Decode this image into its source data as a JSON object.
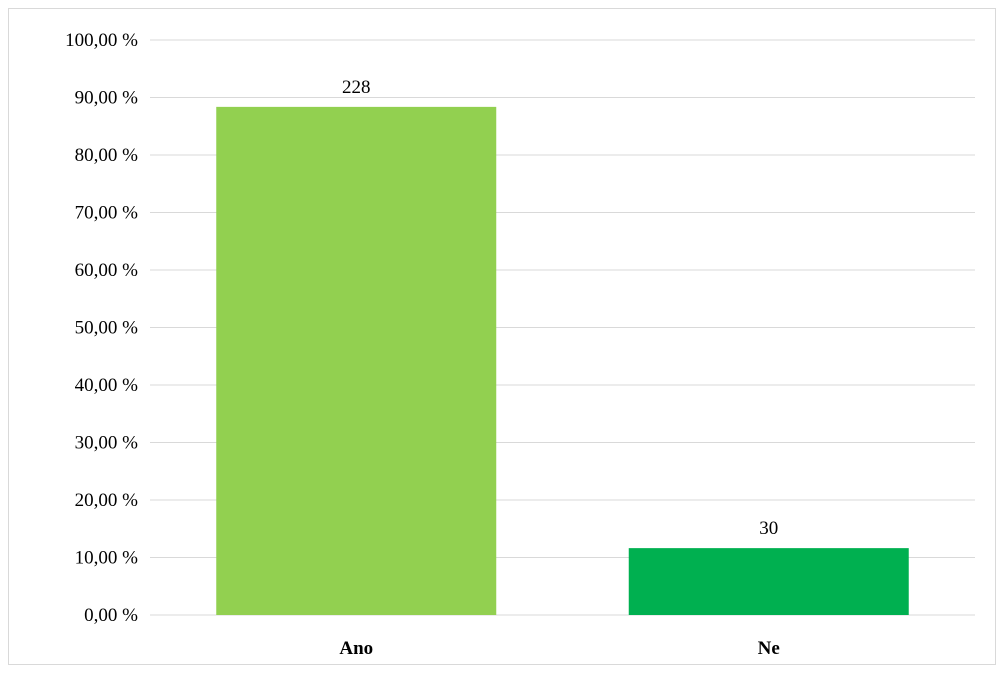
{
  "chart_data": {
    "type": "bar",
    "title": "",
    "xlabel": "",
    "ylabel": "",
    "categories": [
      "Ano",
      "Ne"
    ],
    "values": [
      88.37,
      11.63
    ],
    "data_labels": [
      "228",
      "30"
    ],
    "colors": [
      "#92d050",
      "#00b050"
    ],
    "ylim": [
      0,
      100
    ],
    "yticks": [
      0,
      10,
      20,
      30,
      40,
      50,
      60,
      70,
      80,
      90,
      100
    ],
    "ytick_labels": [
      "0,00 %",
      "10,00 %",
      "20,00 %",
      "30,00 %",
      "40,00 %",
      "50,00 %",
      "60,00 %",
      "70,00 %",
      "80,00 %",
      "90,00 %",
      "100,00 %"
    ],
    "grid": true,
    "gridline_color": "#d9d9d9",
    "legend": "none"
  }
}
